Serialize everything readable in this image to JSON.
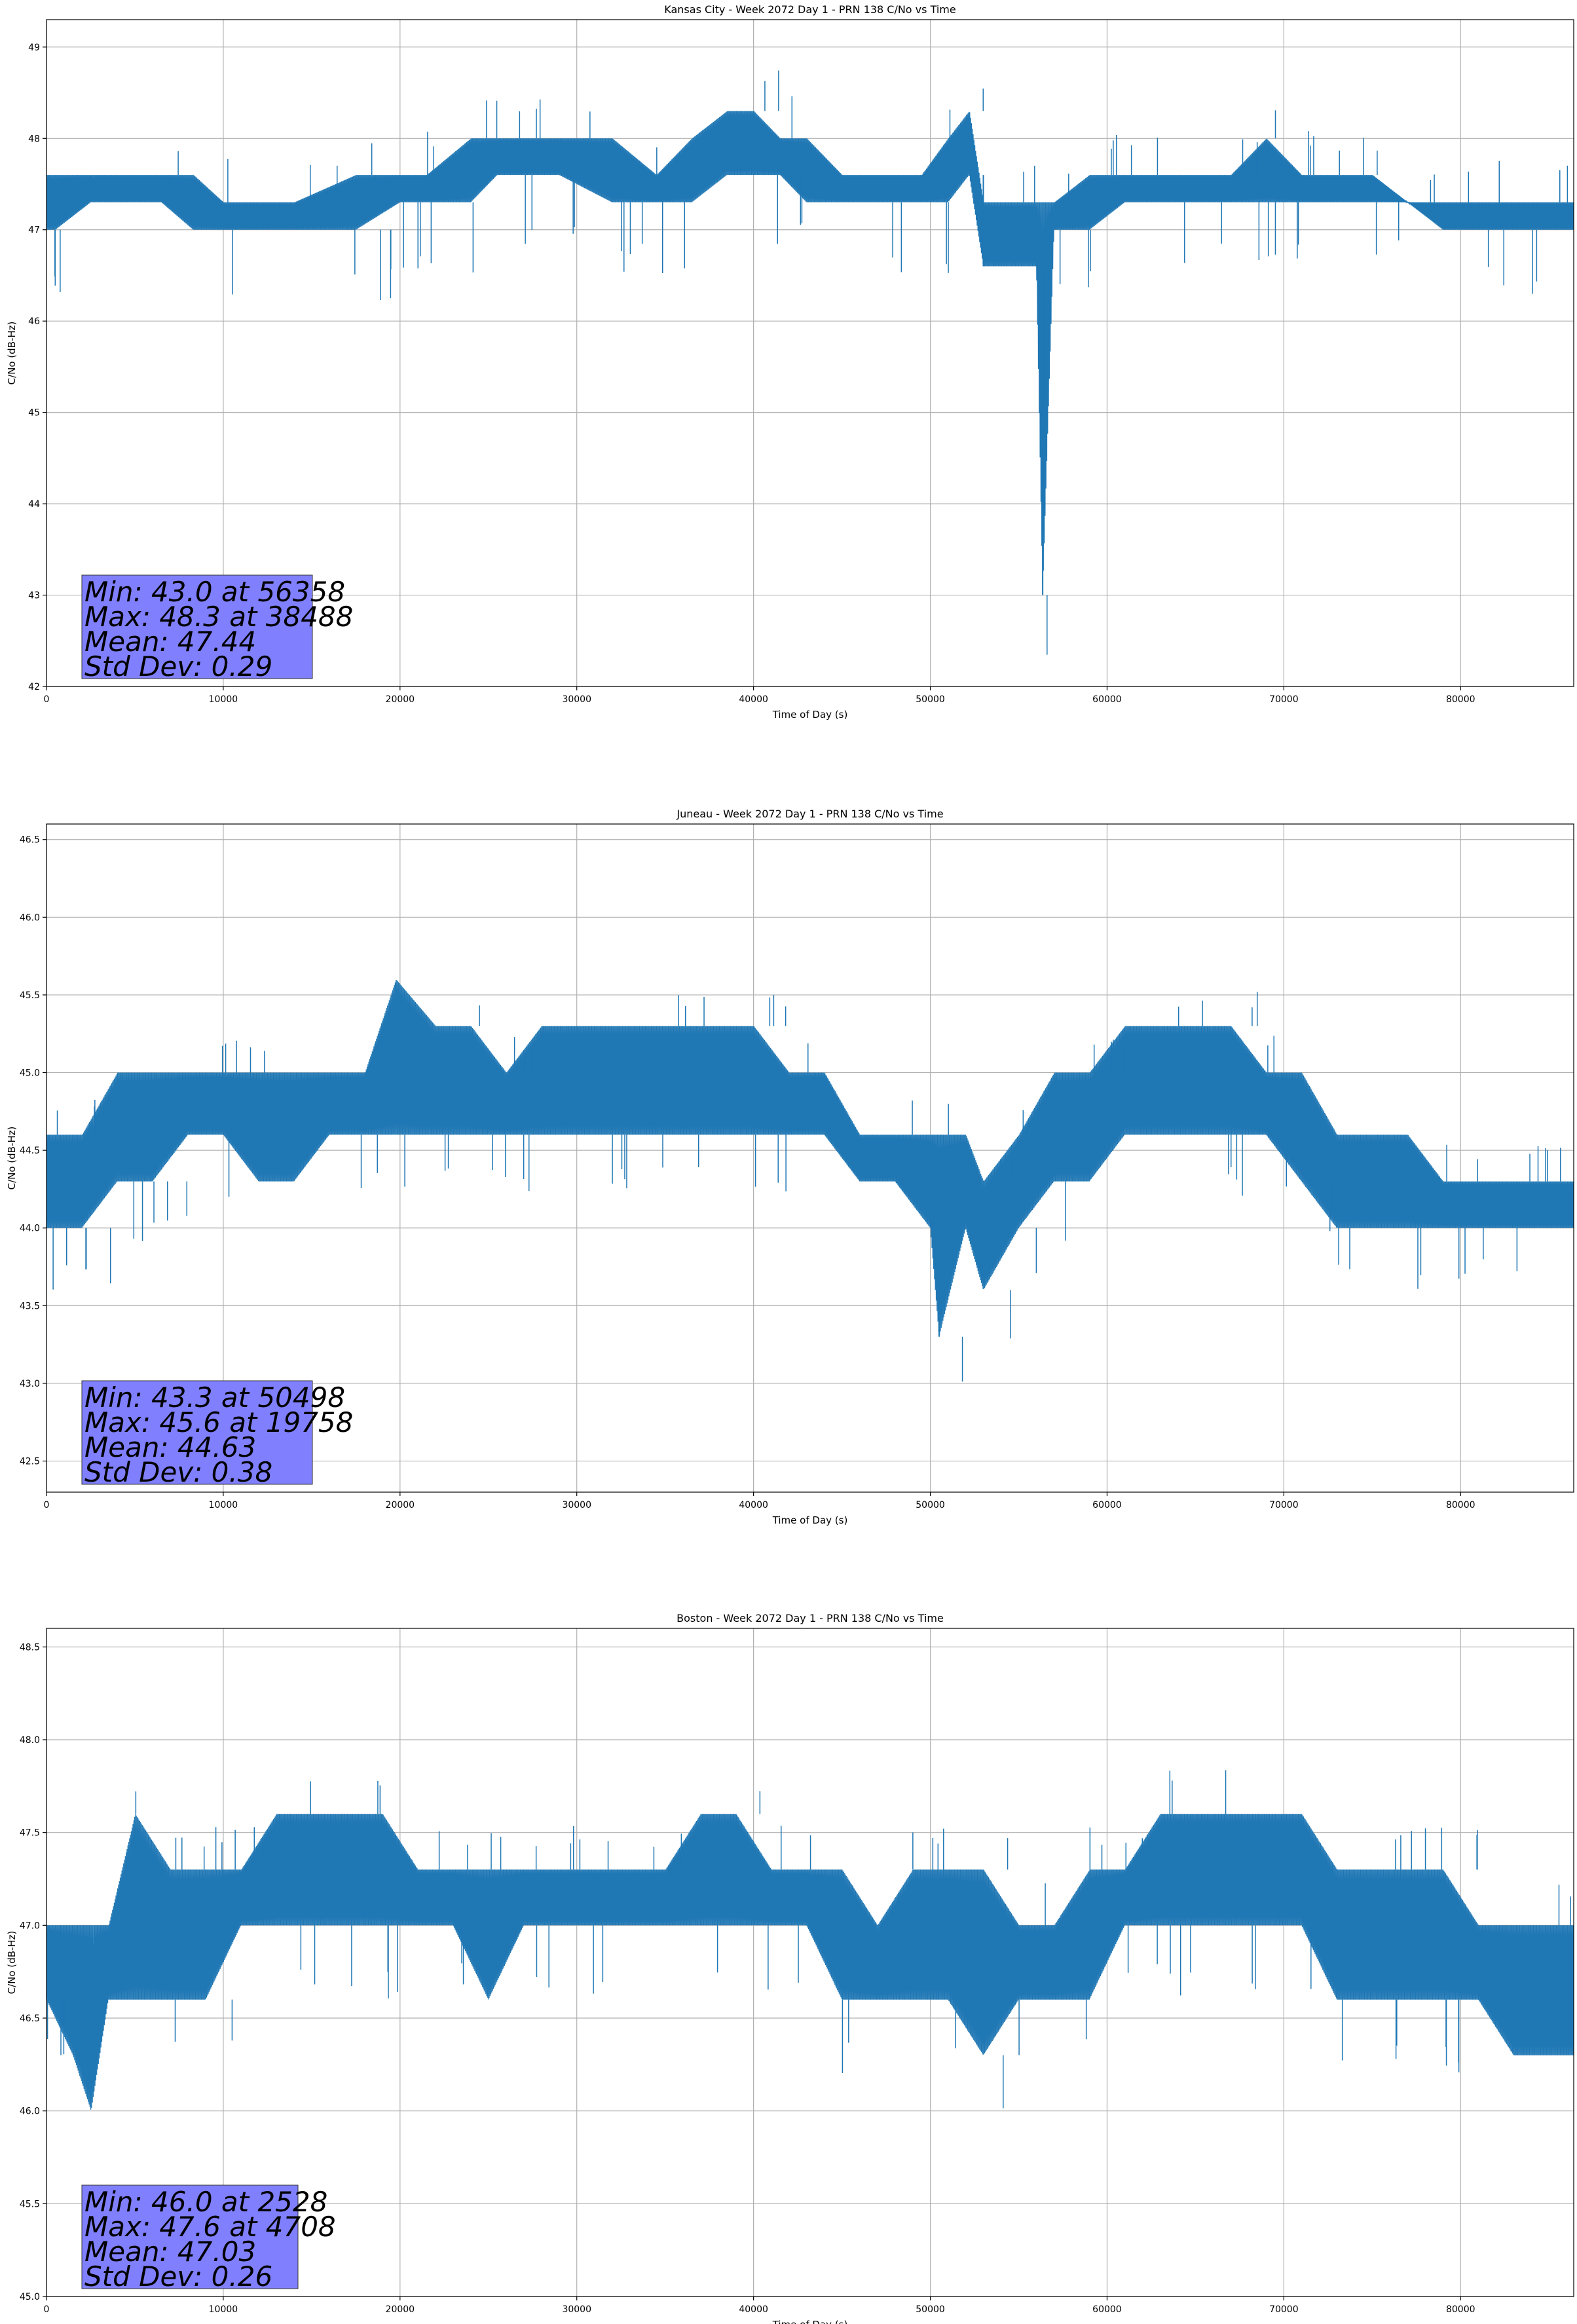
{
  "colors": {
    "line": "#1f77b4",
    "grid": "#b0b0b0",
    "statsbox": "#8080ff"
  },
  "chart_data": [
    {
      "type": "line",
      "title": "Kansas City - Week 2072 Day 1 - PRN 138 C/No vs Time",
      "xlabel": "Time of Day (s)",
      "ylabel": "C/No (dB-Hz)",
      "xlim": [
        0,
        86400
      ],
      "ylim": [
        42,
        49.3
      ],
      "xticks": [
        0,
        10000,
        20000,
        30000,
        40000,
        50000,
        60000,
        70000,
        80000
      ],
      "yticks": [
        42,
        43,
        44,
        45,
        46,
        47,
        48,
        49
      ],
      "ytick_labels": [
        "42",
        "43",
        "44",
        "45",
        "46",
        "47",
        "48",
        "49"
      ],
      "grid": true,
      "stats": [
        "Min: 43.0 at 56358",
        "Max: 48.3 at 38488",
        "Mean: 47.44",
        "Std Dev: 0.29"
      ],
      "series": [
        {
          "x": [
            0,
            500,
            2500,
            4500,
            6500,
            8300,
            10000,
            14000,
            17500,
            20000,
            21500,
            24000,
            25500,
            29000,
            32000,
            34500,
            36500,
            38500,
            40000,
            41500,
            43000,
            45000,
            47000,
            49500,
            51000,
            52200,
            53000,
            54500,
            56000,
            56358,
            57000,
            59000,
            61000,
            63000,
            65000,
            67000,
            69000,
            71000,
            73000,
            75000,
            77000,
            79000,
            81000,
            83000,
            85000,
            86400
          ],
          "y_low": [
            47.0,
            47.0,
            47.3,
            47.3,
            47.3,
            47.0,
            47.0,
            47.0,
            47.0,
            47.3,
            47.3,
            47.3,
            47.6,
            47.6,
            47.3,
            47.3,
            47.3,
            47.6,
            47.6,
            47.6,
            47.3,
            47.3,
            47.3,
            47.3,
            47.3,
            47.6,
            46.6,
            46.6,
            46.6,
            43.0,
            47.0,
            47.0,
            47.3,
            47.3,
            47.3,
            47.3,
            47.3,
            47.3,
            47.3,
            47.3,
            47.3,
            47.0,
            47.0,
            47.0,
            47.0,
            47.0
          ],
          "y_high": [
            47.6,
            47.6,
            47.6,
            47.6,
            47.6,
            47.6,
            47.3,
            47.3,
            47.6,
            47.6,
            47.6,
            48.0,
            48.0,
            48.0,
            48.0,
            47.6,
            48.0,
            48.3,
            48.3,
            48.0,
            48.0,
            47.6,
            47.6,
            47.6,
            48.0,
            48.3,
            47.3,
            47.3,
            47.3,
            47.3,
            47.3,
            47.6,
            47.6,
            47.6,
            47.6,
            47.6,
            48.0,
            47.6,
            47.6,
            47.6,
            47.3,
            47.3,
            47.3,
            47.3,
            47.3,
            47.3
          ]
        }
      ]
    },
    {
      "type": "line",
      "title": "Juneau - Week 2072 Day 1 - PRN 138 C/No vs Time",
      "xlabel": "Time of Day (s)",
      "ylabel": "C/No (dB-Hz)",
      "xlim": [
        0,
        86400
      ],
      "ylim": [
        42.3,
        46.6
      ],
      "xticks": [
        0,
        10000,
        20000,
        30000,
        40000,
        50000,
        60000,
        70000,
        80000
      ],
      "yticks": [
        42.5,
        43.0,
        43.5,
        44.0,
        44.5,
        45.0,
        45.5,
        46.0,
        46.5
      ],
      "ytick_labels": [
        "42.5",
        "43.0",
        "43.5",
        "44.0",
        "44.5",
        "45.0",
        "45.5",
        "46.0",
        "46.5"
      ],
      "grid": true,
      "stats": [
        "Min: 43.3 at 50498",
        "Max: 45.6 at 19758",
        "Mean: 44.63",
        "Std Dev: 0.38"
      ],
      "series": [
        {
          "x": [
            0,
            2000,
            4000,
            6000,
            8000,
            10000,
            12000,
            14000,
            16000,
            18000,
            19758,
            22000,
            24000,
            26000,
            28000,
            30000,
            32000,
            34000,
            36000,
            38000,
            40000,
            42000,
            44000,
            46000,
            48000,
            50000,
            50498,
            52000,
            53000,
            55000,
            57000,
            59000,
            61000,
            63000,
            65000,
            67000,
            69000,
            71000,
            73000,
            75000,
            77000,
            79000,
            81000,
            83000,
            85000,
            86400
          ],
          "y_low": [
            44.0,
            44.0,
            44.3,
            44.3,
            44.6,
            44.6,
            44.3,
            44.3,
            44.6,
            44.6,
            44.6,
            44.6,
            44.6,
            44.6,
            44.6,
            44.6,
            44.6,
            44.6,
            44.6,
            44.6,
            44.6,
            44.6,
            44.6,
            44.3,
            44.3,
            44.0,
            43.3,
            44.0,
            43.6,
            44.0,
            44.3,
            44.3,
            44.6,
            44.6,
            44.6,
            44.6,
            44.6,
            44.3,
            44.0,
            44.0,
            44.0,
            44.0,
            44.0,
            44.0,
            44.0,
            44.0
          ],
          "y_high": [
            44.6,
            44.6,
            45.0,
            45.0,
            45.0,
            45.0,
            45.0,
            45.0,
            45.0,
            45.0,
            45.6,
            45.3,
            45.3,
            45.0,
            45.3,
            45.3,
            45.3,
            45.3,
            45.3,
            45.3,
            45.3,
            45.0,
            45.0,
            44.6,
            44.6,
            44.6,
            44.6,
            44.6,
            44.3,
            44.6,
            45.0,
            45.0,
            45.3,
            45.3,
            45.3,
            45.3,
            45.0,
            45.0,
            44.6,
            44.6,
            44.6,
            44.3,
            44.3,
            44.3,
            44.3,
            44.3
          ]
        }
      ]
    },
    {
      "type": "line",
      "title": "Boston - Week 2072 Day 1 - PRN 138 C/No vs Time",
      "xlabel": "Time of Day (s)",
      "ylabel": "C/No (dB-Hz)",
      "xlim": [
        0,
        86400
      ],
      "ylim": [
        45.0,
        48.6
      ],
      "xticks": [
        0,
        10000,
        20000,
        30000,
        40000,
        50000,
        60000,
        70000,
        80000
      ],
      "yticks": [
        45.0,
        45.5,
        46.0,
        46.5,
        47.0,
        47.5,
        48.0,
        48.5
      ],
      "ytick_labels": [
        "45.0",
        "45.5",
        "46.0",
        "46.5",
        "47.0",
        "47.5",
        "48.0",
        "48.5"
      ],
      "grid": true,
      "stats": [
        "Min: 46.0 at 2528",
        "Max: 47.6 at 4708",
        "Mean: 47.03",
        "Std Dev: 0.26"
      ],
      "series": [
        {
          "x": [
            0,
            1500,
            2528,
            3500,
            5000,
            7000,
            9000,
            11000,
            13000,
            15000,
            17000,
            19000,
            21000,
            23000,
            25000,
            27000,
            29000,
            31000,
            33000,
            35000,
            37000,
            39000,
            41000,
            43000,
            45000,
            47000,
            49000,
            51000,
            53000,
            55000,
            57000,
            59000,
            61000,
            63000,
            65000,
            67000,
            69000,
            71000,
            73000,
            75000,
            77000,
            79000,
            81000,
            83000,
            85000,
            86400
          ],
          "y_low": [
            46.6,
            46.3,
            46.0,
            46.6,
            46.6,
            46.6,
            46.6,
            47.0,
            47.0,
            47.0,
            47.0,
            47.0,
            47.0,
            47.0,
            46.6,
            47.0,
            47.0,
            47.0,
            47.0,
            47.0,
            47.0,
            47.0,
            47.0,
            47.0,
            46.6,
            46.6,
            46.6,
            46.6,
            46.3,
            46.6,
            46.6,
            46.6,
            47.0,
            47.0,
            47.0,
            47.0,
            47.0,
            47.0,
            46.6,
            46.6,
            46.6,
            46.6,
            46.6,
            46.3,
            46.3,
            46.3
          ],
          "y_high": [
            47.0,
            47.0,
            47.0,
            47.0,
            47.6,
            47.3,
            47.3,
            47.3,
            47.6,
            47.6,
            47.6,
            47.6,
            47.3,
            47.3,
            47.3,
            47.3,
            47.3,
            47.3,
            47.3,
            47.3,
            47.6,
            47.6,
            47.3,
            47.3,
            47.3,
            47.0,
            47.3,
            47.3,
            47.3,
            47.0,
            47.0,
            47.3,
            47.3,
            47.6,
            47.6,
            47.6,
            47.6,
            47.6,
            47.3,
            47.3,
            47.3,
            47.3,
            47.0,
            47.0,
            47.0,
            47.0
          ]
        }
      ]
    }
  ]
}
